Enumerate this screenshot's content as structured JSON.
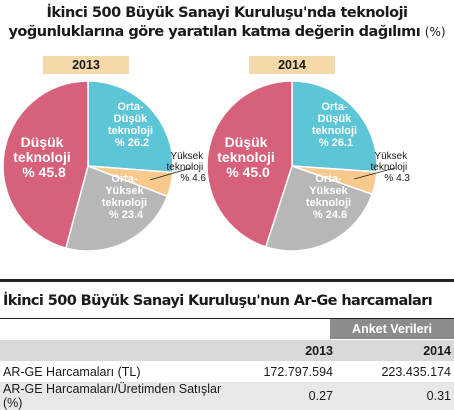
{
  "title": {
    "line1": "İkinci 500 Büyük Sanayi Kuruluşu'nda teknoloji",
    "line2": "yoğunluklarına göre yaratılan katma değerin dağılımı",
    "unit": "(%)"
  },
  "chart_data": [
    {
      "type": "pie",
      "title": "2013",
      "slices": [
        {
          "line1": "Orta-",
          "line2": "Düşük",
          "line3": "teknoloji",
          "line4": "% 26.2",
          "value": 26.2,
          "color": "#5cc6d6"
        },
        {
          "line1": "Yüksek",
          "line2": "teknoloji",
          "line3": "% 4.6",
          "value": 4.6,
          "color": "#f8c98c"
        },
        {
          "line1": "Orta-",
          "line2": "Yüksek",
          "line3": "teknoloji",
          "line4": "% 23.4",
          "value": 23.4,
          "color": "#b7b7b7"
        },
        {
          "line1": "Düşük",
          "line2": "teknoloji",
          "line3": "% 45.8",
          "value": 45.8,
          "color": "#d7607a"
        }
      ]
    },
    {
      "type": "pie",
      "title": "2014",
      "slices": [
        {
          "line1": "Orta-",
          "line2": "Düşük",
          "line3": "teknoloji",
          "line4": "% 26.1",
          "value": 26.1,
          "color": "#5cc6d6"
        },
        {
          "line1": "Yüksek",
          "line2": "teknoloji",
          "line3": "% 4.3",
          "value": 4.3,
          "color": "#f8c98c"
        },
        {
          "line1": "Orta-",
          "line2": "Yüksek",
          "line3": "teknoloji",
          "line4": "% 24.6",
          "value": 24.6,
          "color": "#b7b7b7"
        },
        {
          "line1": "Düşük",
          "line2": "teknoloji",
          "line3": "% 45.0",
          "value": 45.0,
          "color": "#d7607a"
        }
      ]
    }
  ],
  "table": {
    "title": "İkinci 500 Büyük Sanayi Kuruluşu'nun Ar-Ge harcamaları",
    "badge": "Anket Verileri",
    "columns": [
      "2013",
      "2014"
    ],
    "rows": [
      {
        "label": "AR-GE Harcamaları (TL)",
        "v2013": "172.797.594",
        "v2014": "223.435.174"
      },
      {
        "label": "AR-GE Harcamaları/Üretimden Satışlar (%)",
        "v2013": "0.27",
        "v2014": "0.31"
      }
    ]
  }
}
